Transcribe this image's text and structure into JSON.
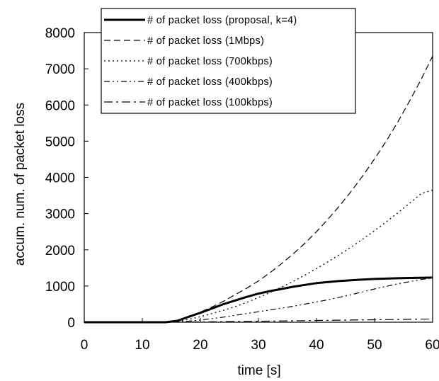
{
  "chart_data": {
    "type": "line",
    "xlabel": "time [s]",
    "ylabel": "accum. num. of packet loss",
    "xlim": [
      0,
      60
    ],
    "ylim": [
      0,
      8000
    ],
    "xticks": [
      0,
      10,
      20,
      30,
      40,
      50,
      60
    ],
    "yticks": [
      0,
      1000,
      2000,
      3000,
      4000,
      5000,
      6000,
      7000,
      8000
    ],
    "grid": false,
    "legend_position": "top-center",
    "x": [
      0,
      10,
      14,
      16,
      18,
      20,
      22,
      24,
      26,
      28,
      30,
      32,
      34,
      36,
      38,
      40,
      42,
      44,
      46,
      48,
      50,
      52,
      54,
      56,
      58,
      60
    ],
    "series": [
      {
        "name": "# of packet loss (proposal, k=4)",
        "style": "solid-thick",
        "values": [
          0,
          0,
          0,
          40,
          150,
          260,
          380,
          500,
          600,
          700,
          790,
          860,
          920,
          980,
          1030,
          1080,
          1110,
          1140,
          1160,
          1180,
          1195,
          1205,
          1215,
          1222,
          1228,
          1235
        ]
      },
      {
        "name": "# of packet loss (1Mbps)",
        "style": "dashed",
        "values": [
          0,
          0,
          0,
          40,
          150,
          280,
          420,
          580,
          760,
          940,
          1140,
          1370,
          1620,
          1890,
          2180,
          2500,
          2850,
          3220,
          3620,
          4050,
          4510,
          5000,
          5530,
          6100,
          6700,
          7350
        ]
      },
      {
        "name": "# of packet loss (700kbps)",
        "style": "dotted",
        "values": [
          0,
          0,
          0,
          20,
          80,
          150,
          240,
          330,
          430,
          550,
          680,
          820,
          970,
          1130,
          1300,
          1480,
          1670,
          1870,
          2080,
          2300,
          2530,
          2770,
          3020,
          3280,
          3550,
          3650
        ]
      },
      {
        "name": "# of packet loss (400kbps)",
        "style": "dash-dot-dot",
        "values": [
          0,
          0,
          0,
          10,
          30,
          60,
          100,
          140,
          190,
          240,
          290,
          340,
          390,
          440,
          500,
          560,
          620,
          690,
          760,
          840,
          920,
          990,
          1060,
          1120,
          1180,
          1220
        ]
      },
      {
        "name": "# of packet loss (100kbps)",
        "style": "dash-dot",
        "values": [
          0,
          0,
          0,
          2,
          5,
          8,
          12,
          16,
          20,
          24,
          28,
          32,
          36,
          40,
          44,
          48,
          52,
          56,
          60,
          64,
          68,
          72,
          76,
          80,
          84,
          88
        ]
      }
    ]
  }
}
